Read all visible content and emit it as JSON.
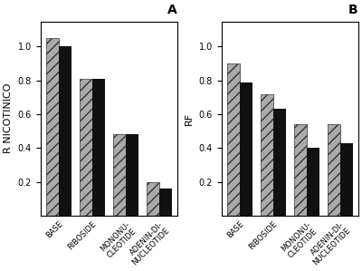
{
  "chart_data": [
    {
      "type": "bar",
      "title": "A",
      "ylabel": "R NICOTINICO",
      "categories": [
        "BASE",
        "RIBOSIDE",
        "MONONU-\nCLEOTIDE",
        "ADENIN-DI-\nNUCLEOTIDE"
      ],
      "series": [
        {
          "color": "#aaaaaa",
          "values": [
            1.05,
            0.81,
            0.48,
            0.2
          ]
        },
        {
          "color": "#111111",
          "values": [
            1.0,
            0.81,
            0.48,
            0.16
          ]
        }
      ],
      "ylim": [
        0,
        1.15
      ],
      "yticks": [
        0.2,
        0.4,
        0.6,
        0.8,
        {
          "value": 1.0,
          "label": "1.0"
        }
      ],
      "grid": false
    },
    {
      "type": "bar",
      "title": "B",
      "ylabel": "RF",
      "categories": [
        "BASE",
        "RIBOSIDE",
        "MONONU-\nCLEOTIDE",
        "ADENIN-DI-\nNUCLEOTIDE"
      ],
      "series": [
        {
          "color": "#aaaaaa",
          "values": [
            0.9,
            0.72,
            0.54,
            0.54
          ]
        },
        {
          "color": "#111111",
          "values": [
            0.79,
            0.63,
            0.4,
            0.43
          ]
        }
      ],
      "ylim": [
        0,
        1.15
      ],
      "yticks": [
        0.2,
        0.4,
        0.6,
        0.8,
        {
          "value": 1.0,
          "label": "1.0"
        }
      ],
      "grid": false
    }
  ]
}
